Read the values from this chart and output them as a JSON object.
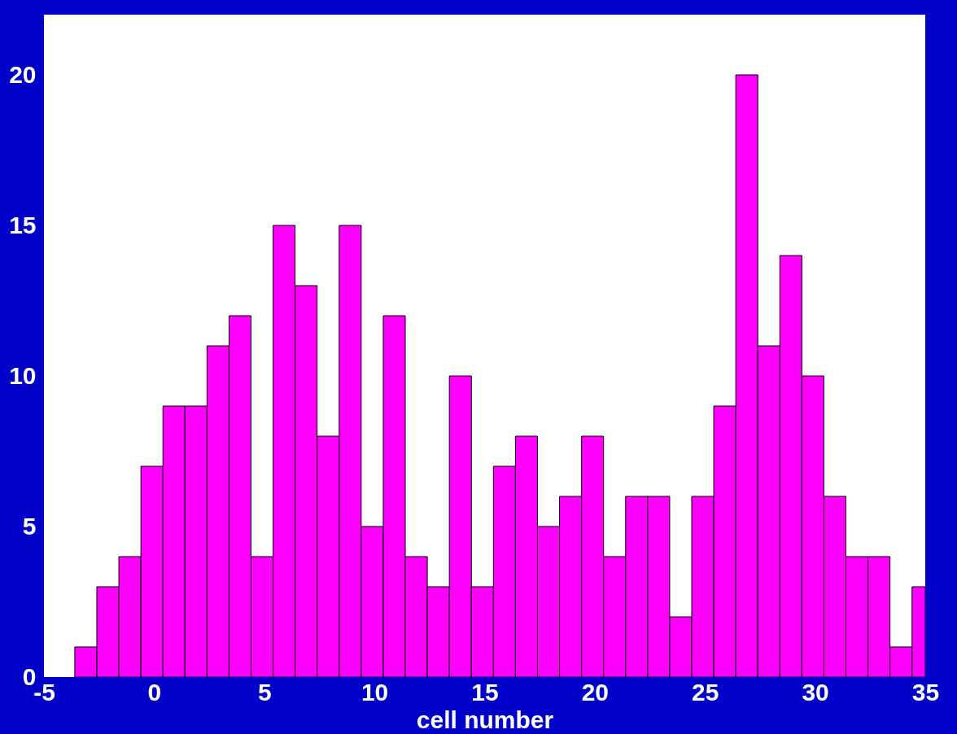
{
  "chart_data": {
    "type": "histogram",
    "xlabel": "cell number",
    "color": "#ff00ff",
    "bins": [
      -3.6,
      -2.6,
      -1.6,
      -0.6,
      0.4,
      1.4,
      2.4,
      3.4,
      4.4,
      5.4,
      6.4,
      7.4,
      8.4,
      9.4,
      10.4,
      11.4,
      12.4,
      13.4,
      14.4,
      15.4,
      16.4,
      17.4,
      18.4,
      19.4,
      20.4,
      21.4,
      22.4,
      23.4,
      24.4,
      25.4,
      26.4,
      27.4,
      28.4,
      29.4,
      30.4,
      31.4,
      32.4,
      33.4,
      34.4,
      35
    ],
    "values": [
      1,
      3,
      4,
      7,
      9,
      9,
      11,
      12,
      4,
      15,
      13,
      8,
      15,
      5,
      12,
      4,
      3,
      10,
      3,
      7,
      8,
      5,
      6,
      8,
      4,
      6,
      6,
      2,
      6,
      9,
      20,
      11,
      14,
      10,
      6,
      4,
      4,
      1,
      3
    ],
    "xlim": [
      -5,
      35
    ],
    "xticks": [
      -5,
      0,
      5,
      10,
      15,
      20,
      25,
      30,
      35
    ],
    "ylim": [
      0,
      22
    ],
    "yticks": [
      0,
      5,
      10,
      15,
      20
    ],
    "grid": false
  }
}
